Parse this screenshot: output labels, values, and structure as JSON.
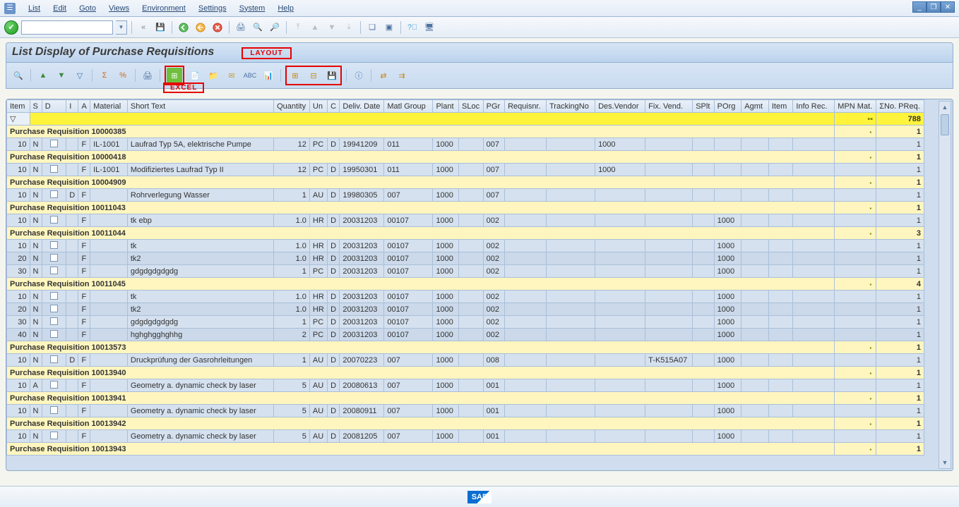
{
  "menu": [
    "List",
    "Edit",
    "Goto",
    "Views",
    "Environment",
    "Settings",
    "System",
    "Help"
  ],
  "title": "List Display of Purchase Requisitions",
  "annotations": {
    "layout": "LAYOUT",
    "excel": "EXCEL"
  },
  "totals_row": {
    "sigma": "788"
  },
  "columns": [
    "Item",
    "S",
    "D",
    "I",
    "A",
    "Material",
    "Short Text",
    "Quantity",
    "Un",
    "C",
    "Deliv. Date",
    "Matl Group",
    "Plant",
    "SLoc",
    "PGr",
    "Requisnr.",
    "TrackingNo",
    "Des.Vendor",
    "Fix. Vend.",
    "SPlt",
    "POrg",
    "Agmt",
    "Item",
    "Info Rec.",
    "MPN Mat.",
    "ΣNo. PReq."
  ],
  "groups": [
    {
      "label": "Purchase Requisition 10000385",
      "sum": "1",
      "rows": [
        {
          "item": "10",
          "s": "N",
          "d": "",
          "i": "",
          "a": "F",
          "mat": "IL-1001",
          "txt": "Laufrad Typ 5A, elektrische Pumpe",
          "qty": "12",
          "un": "PC",
          "c": "D",
          "deliv": "19941209",
          "mg": "011",
          "plant": "1000",
          "sloc": "",
          "pgr": "007",
          "req": "",
          "trk": "",
          "dven": "1000",
          "fix": "",
          "splt": "",
          "porg": "",
          "agmt": "",
          "itm2": "",
          "info": "",
          "mpn": "",
          "npr": "1"
        }
      ]
    },
    {
      "label": "Purchase Requisition 10000418",
      "sum": "1",
      "rows": [
        {
          "item": "10",
          "s": "N",
          "d": "",
          "i": "",
          "a": "F",
          "mat": "IL-1001",
          "txt": "Modifiziertes Laufrad Typ II",
          "qty": "12",
          "un": "PC",
          "c": "D",
          "deliv": "19950301",
          "mg": "011",
          "plant": "1000",
          "sloc": "",
          "pgr": "007",
          "req": "",
          "trk": "",
          "dven": "1000",
          "fix": "",
          "splt": "",
          "porg": "",
          "agmt": "",
          "itm2": "",
          "info": "",
          "mpn": "",
          "npr": "1"
        }
      ]
    },
    {
      "label": "Purchase Requisition 10004909",
      "sum": "1",
      "rows": [
        {
          "item": "10",
          "s": "N",
          "d": "D",
          "i": "",
          "a": "F",
          "mat": "",
          "txt": "Rohrverlegung Wasser",
          "qty": "1",
          "un": "AU",
          "c": "D",
          "deliv": "19980305",
          "mg": "007",
          "plant": "1000",
          "sloc": "",
          "pgr": "007",
          "req": "",
          "trk": "",
          "dven": "",
          "fix": "",
          "splt": "",
          "porg": "",
          "agmt": "",
          "itm2": "",
          "info": "",
          "mpn": "",
          "npr": "1"
        }
      ]
    },
    {
      "label": "Purchase Requisition 10011043",
      "sum": "1",
      "rows": [
        {
          "item": "10",
          "s": "N",
          "d": "",
          "i": "",
          "a": "F",
          "mat": "",
          "txt": "tk ebp",
          "qty": "1.0",
          "un": "HR",
          "c": "D",
          "deliv": "20031203",
          "mg": "00107",
          "plant": "1000",
          "sloc": "",
          "pgr": "002",
          "req": "",
          "trk": "",
          "dven": "",
          "fix": "",
          "splt": "",
          "porg": "1000",
          "agmt": "",
          "itm2": "",
          "info": "",
          "mpn": "",
          "npr": "1"
        }
      ]
    },
    {
      "label": "Purchase Requisition 10011044",
      "sum": "3",
      "rows": [
        {
          "item": "10",
          "s": "N",
          "d": "",
          "i": "",
          "a": "F",
          "mat": "",
          "txt": "tk",
          "qty": "1.0",
          "un": "HR",
          "c": "D",
          "deliv": "20031203",
          "mg": "00107",
          "plant": "1000",
          "sloc": "",
          "pgr": "002",
          "req": "",
          "trk": "",
          "dven": "",
          "fix": "",
          "splt": "",
          "porg": "1000",
          "agmt": "",
          "itm2": "",
          "info": "",
          "mpn": "",
          "npr": "1"
        },
        {
          "item": "20",
          "s": "N",
          "d": "",
          "i": "",
          "a": "F",
          "mat": "",
          "txt": "tk2",
          "qty": "1.0",
          "un": "HR",
          "c": "D",
          "deliv": "20031203",
          "mg": "00107",
          "plant": "1000",
          "sloc": "",
          "pgr": "002",
          "req": "",
          "trk": "",
          "dven": "",
          "fix": "",
          "splt": "",
          "porg": "1000",
          "agmt": "",
          "itm2": "",
          "info": "",
          "mpn": "",
          "npr": "1"
        },
        {
          "item": "30",
          "s": "N",
          "d": "",
          "i": "",
          "a": "F",
          "mat": "",
          "txt": "gdgdgdgdgdg",
          "qty": "1",
          "un": "PC",
          "c": "D",
          "deliv": "20031203",
          "mg": "00107",
          "plant": "1000",
          "sloc": "",
          "pgr": "002",
          "req": "",
          "trk": "",
          "dven": "",
          "fix": "",
          "splt": "",
          "porg": "1000",
          "agmt": "",
          "itm2": "",
          "info": "",
          "mpn": "",
          "npr": "1"
        }
      ]
    },
    {
      "label": "Purchase Requisition 10011045",
      "sum": "4",
      "rows": [
        {
          "item": "10",
          "s": "N",
          "d": "",
          "i": "",
          "a": "F",
          "mat": "",
          "txt": "tk",
          "qty": "1.0",
          "un": "HR",
          "c": "D",
          "deliv": "20031203",
          "mg": "00107",
          "plant": "1000",
          "sloc": "",
          "pgr": "002",
          "req": "",
          "trk": "",
          "dven": "",
          "fix": "",
          "splt": "",
          "porg": "1000",
          "agmt": "",
          "itm2": "",
          "info": "",
          "mpn": "",
          "npr": "1"
        },
        {
          "item": "20",
          "s": "N",
          "d": "",
          "i": "",
          "a": "F",
          "mat": "",
          "txt": "tk2",
          "qty": "1.0",
          "un": "HR",
          "c": "D",
          "deliv": "20031203",
          "mg": "00107",
          "plant": "1000",
          "sloc": "",
          "pgr": "002",
          "req": "",
          "trk": "",
          "dven": "",
          "fix": "",
          "splt": "",
          "porg": "1000",
          "agmt": "",
          "itm2": "",
          "info": "",
          "mpn": "",
          "npr": "1"
        },
        {
          "item": "30",
          "s": "N",
          "d": "",
          "i": "",
          "a": "F",
          "mat": "",
          "txt": "gdgdgdgdgdg",
          "qty": "1",
          "un": "PC",
          "c": "D",
          "deliv": "20031203",
          "mg": "00107",
          "plant": "1000",
          "sloc": "",
          "pgr": "002",
          "req": "",
          "trk": "",
          "dven": "",
          "fix": "",
          "splt": "",
          "porg": "1000",
          "agmt": "",
          "itm2": "",
          "info": "",
          "mpn": "",
          "npr": "1"
        },
        {
          "item": "40",
          "s": "N",
          "d": "",
          "i": "",
          "a": "F",
          "mat": "",
          "txt": "hghghgghghhg",
          "qty": "2",
          "un": "PC",
          "c": "D",
          "deliv": "20031203",
          "mg": "00107",
          "plant": "1000",
          "sloc": "",
          "pgr": "002",
          "req": "",
          "trk": "",
          "dven": "",
          "fix": "",
          "splt": "",
          "porg": "1000",
          "agmt": "",
          "itm2": "",
          "info": "",
          "mpn": "",
          "npr": "1"
        }
      ]
    },
    {
      "label": "Purchase Requisition 10013573",
      "sum": "1",
      "rows": [
        {
          "item": "10",
          "s": "N",
          "d": "D",
          "i": "",
          "a": "F",
          "mat": "",
          "txt": "Druckprüfung der Gasrohrleitungen",
          "qty": "1",
          "un": "AU",
          "c": "D",
          "deliv": "20070223",
          "mg": "007",
          "plant": "1000",
          "sloc": "",
          "pgr": "008",
          "req": "",
          "trk": "",
          "dven": "",
          "fix": "T-K515A07",
          "splt": "",
          "porg": "1000",
          "agmt": "",
          "itm2": "",
          "info": "",
          "mpn": "",
          "npr": "1"
        }
      ]
    },
    {
      "label": "Purchase Requisition 10013940",
      "sum": "1",
      "rows": [
        {
          "item": "10",
          "s": "A",
          "d": "",
          "i": "",
          "a": "F",
          "mat": "",
          "txt": "Geometry a. dynamic check by laser",
          "qty": "5",
          "un": "AU",
          "c": "D",
          "deliv": "20080613",
          "mg": "007",
          "plant": "1000",
          "sloc": "",
          "pgr": "001",
          "req": "",
          "trk": "",
          "dven": "",
          "fix": "",
          "splt": "",
          "porg": "1000",
          "agmt": "",
          "itm2": "",
          "info": "",
          "mpn": "",
          "npr": "1"
        }
      ]
    },
    {
      "label": "Purchase Requisition 10013941",
      "sum": "1",
      "rows": [
        {
          "item": "10",
          "s": "N",
          "d": "",
          "i": "",
          "a": "F",
          "mat": "",
          "txt": "Geometry a. dynamic check by laser",
          "qty": "5",
          "un": "AU",
          "c": "D",
          "deliv": "20080911",
          "mg": "007",
          "plant": "1000",
          "sloc": "",
          "pgr": "001",
          "req": "",
          "trk": "",
          "dven": "",
          "fix": "",
          "splt": "",
          "porg": "1000",
          "agmt": "",
          "itm2": "",
          "info": "",
          "mpn": "",
          "npr": "1"
        }
      ]
    },
    {
      "label": "Purchase Requisition 10013942",
      "sum": "1",
      "rows": [
        {
          "item": "10",
          "s": "N",
          "d": "",
          "i": "",
          "a": "F",
          "mat": "",
          "txt": "Geometry a. dynamic check by laser",
          "qty": "5",
          "un": "AU",
          "c": "D",
          "deliv": "20081205",
          "mg": "007",
          "plant": "1000",
          "sloc": "",
          "pgr": "001",
          "req": "",
          "trk": "",
          "dven": "",
          "fix": "",
          "splt": "",
          "porg": "1000",
          "agmt": "",
          "itm2": "",
          "info": "",
          "mpn": "",
          "npr": "1"
        }
      ]
    },
    {
      "label": "Purchase Requisition 10013943",
      "sum": "1",
      "rows": []
    }
  ],
  "footer_logo": "SAP"
}
